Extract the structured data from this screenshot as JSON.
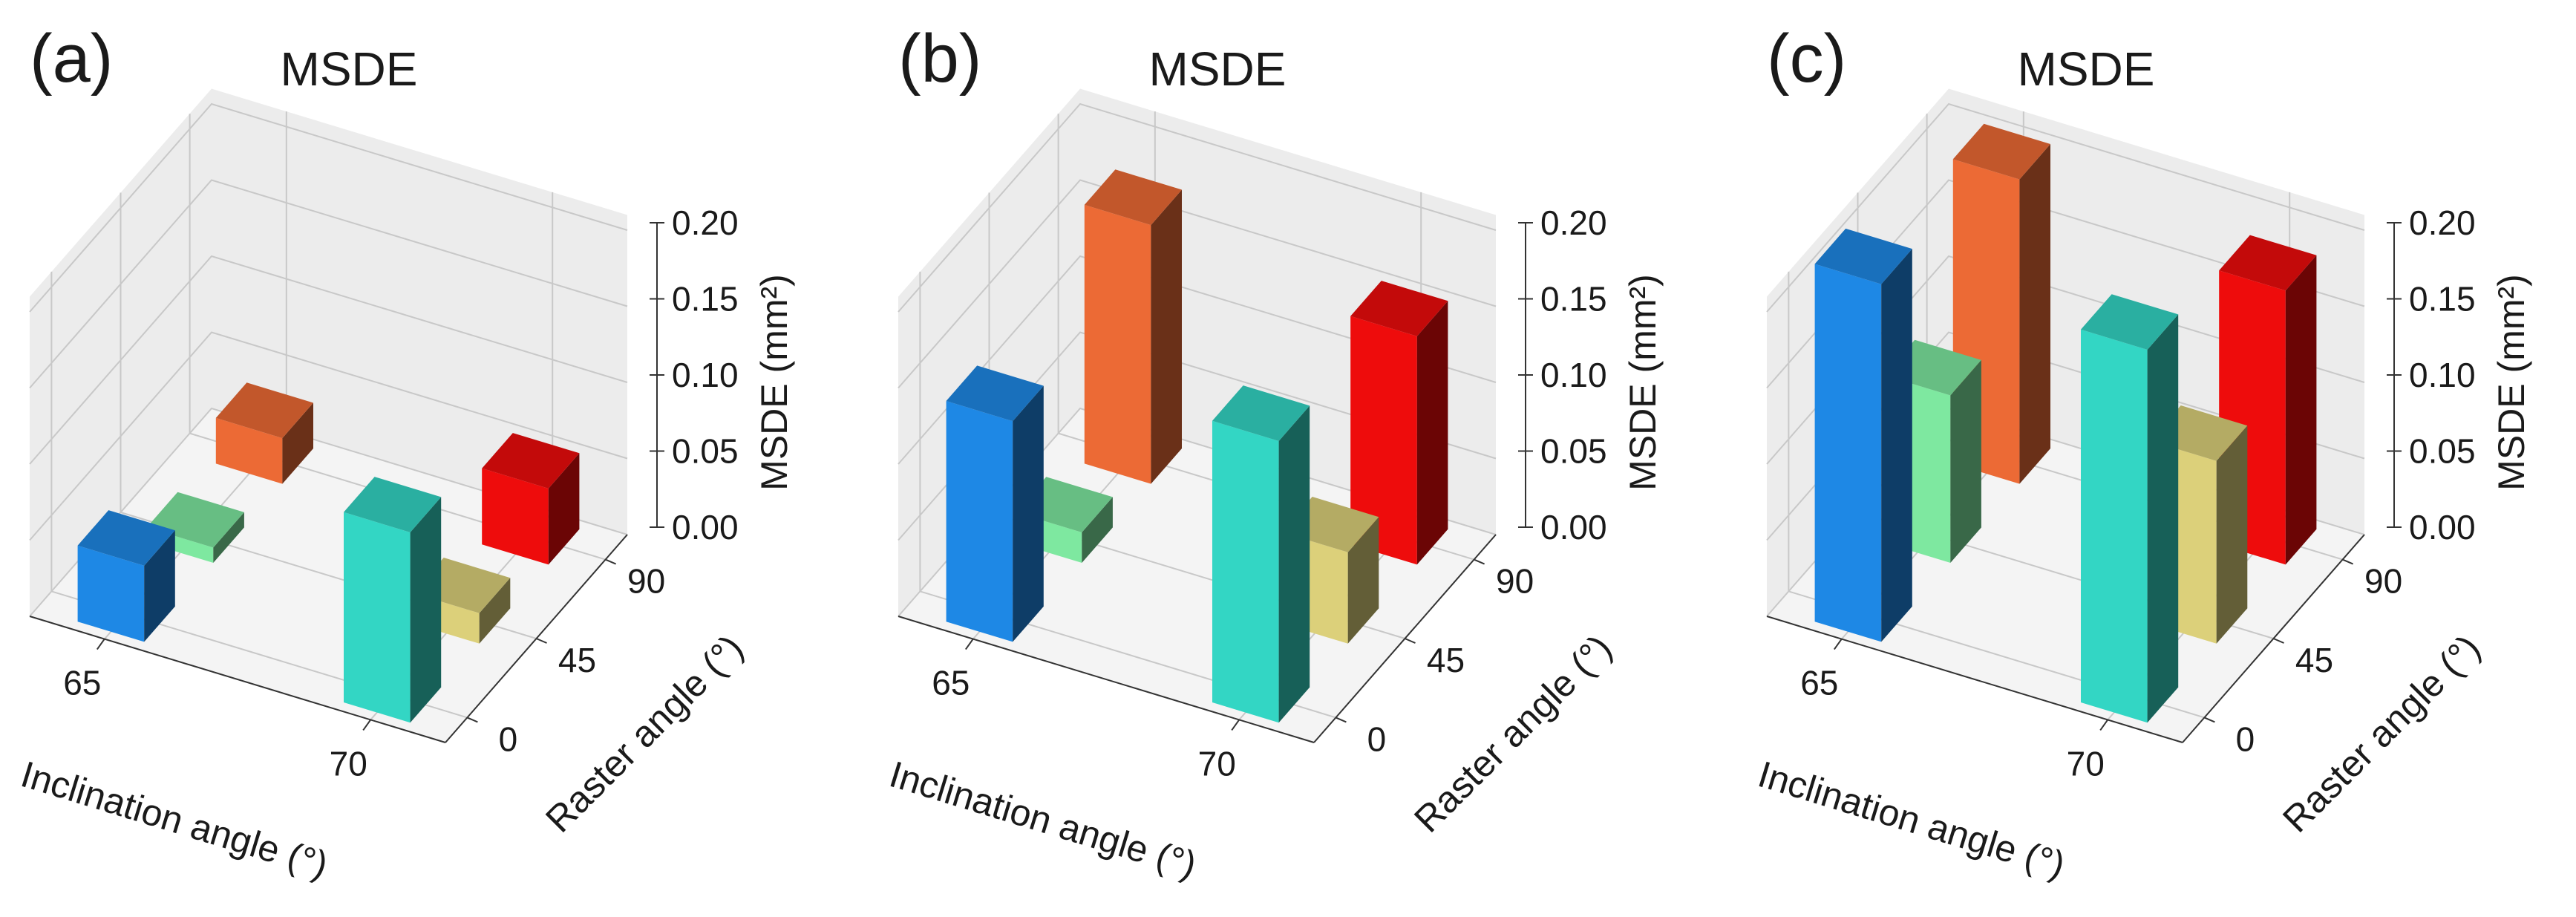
{
  "figure": {
    "colors": {
      "pane": "#ececec",
      "pane_floor": "#f4f4f4",
      "grid": "#c8c8c8",
      "axis": "#333333"
    },
    "bar_colors": {
      "65-0": "#1e88e5",
      "65-45": "#7ee8a0",
      "65-90": "#ec6a35",
      "70-0": "#33d6c4",
      "70-45": "#dcd07a",
      "70-90": "#ee0c0c"
    }
  },
  "chart_data": [
    {
      "type": "bar3d",
      "panel_label": "(a)",
      "title": "MSDE",
      "xlabel": "Inclination angle (°)",
      "ylabel": "Raster angle (°)",
      "zlabel": "MSDE (mm²)",
      "x_ticks": [
        "65",
        "70"
      ],
      "y_ticks": [
        "0",
        "45",
        "90"
      ],
      "z_ticks": [
        "0.00",
        "0.05",
        "0.10",
        "0.15",
        "0.20"
      ],
      "zlim": [
        0,
        0.2
      ],
      "grid": true,
      "bars": [
        {
          "x": "65",
          "y": "90",
          "value": 0.03
        },
        {
          "x": "70",
          "y": "90",
          "value": 0.05
        },
        {
          "x": "65",
          "y": "45",
          "value": 0.01
        },
        {
          "x": "70",
          "y": "45",
          "value": 0.02
        },
        {
          "x": "65",
          "y": "0",
          "value": 0.05
        },
        {
          "x": "70",
          "y": "0",
          "value": 0.125
        }
      ]
    },
    {
      "type": "bar3d",
      "panel_label": "(b)",
      "title": "MSDE",
      "xlabel": "Inclination angle (°)",
      "ylabel": "Raster angle (°)",
      "zlabel": "MSDE (mm²)",
      "x_ticks": [
        "65",
        "70"
      ],
      "y_ticks": [
        "0",
        "45",
        "90"
      ],
      "z_ticks": [
        "0.00",
        "0.05",
        "0.10",
        "0.15",
        "0.20"
      ],
      "zlim": [
        0,
        0.2
      ],
      "grid": true,
      "bars": [
        {
          "x": "65",
          "y": "90",
          "value": 0.17
        },
        {
          "x": "70",
          "y": "90",
          "value": 0.15
        },
        {
          "x": "65",
          "y": "45",
          "value": 0.02
        },
        {
          "x": "70",
          "y": "45",
          "value": 0.06
        },
        {
          "x": "65",
          "y": "0",
          "value": 0.145
        },
        {
          "x": "70",
          "y": "0",
          "value": 0.185
        }
      ]
    },
    {
      "type": "bar3d",
      "panel_label": "(c)",
      "title": "MSDE",
      "xlabel": "Inclination angle (°)",
      "ylabel": "Raster angle (°)",
      "zlabel": "MSDE (mm²)",
      "x_ticks": [
        "65",
        "70"
      ],
      "y_ticks": [
        "0",
        "45",
        "90"
      ],
      "z_ticks": [
        "0.00",
        "0.05",
        "0.10",
        "0.15",
        "0.20"
      ],
      "zlim": [
        0,
        0.2
      ],
      "grid": true,
      "bars": [
        {
          "x": "65",
          "y": "90",
          "value": 0.2
        },
        {
          "x": "70",
          "y": "90",
          "value": 0.18
        },
        {
          "x": "65",
          "y": "45",
          "value": 0.11
        },
        {
          "x": "70",
          "y": "45",
          "value": 0.12
        },
        {
          "x": "65",
          "y": "0",
          "value": 0.235
        },
        {
          "x": "70",
          "y": "0",
          "value": 0.245
        }
      ]
    }
  ]
}
